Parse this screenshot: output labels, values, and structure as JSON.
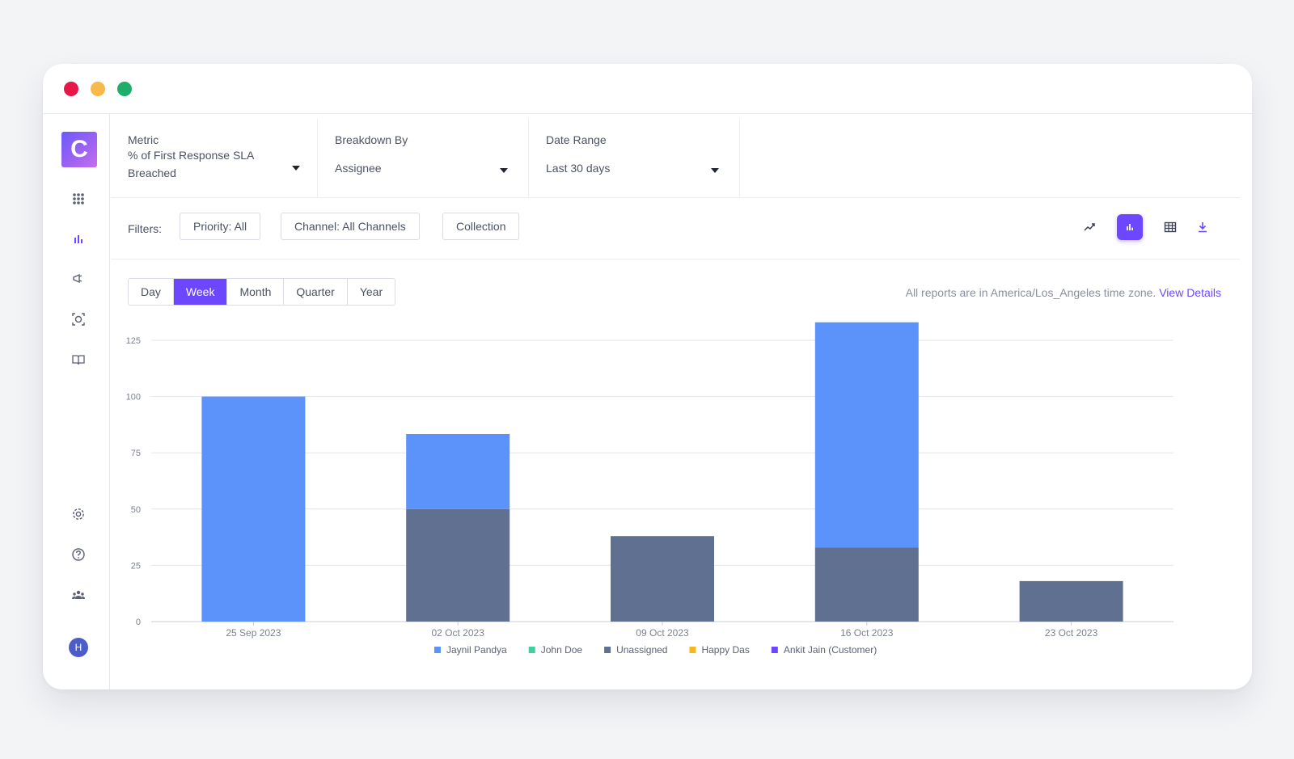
{
  "topbar": {
    "metric": {
      "label": "Metric",
      "value_line1": "% of First Response SLA",
      "value_line2": "Breached"
    },
    "breakdown": {
      "label": "Breakdown By",
      "value": "Assignee"
    },
    "date_range": {
      "label": "Date Range",
      "value": "Last 30 days"
    }
  },
  "filters": {
    "label": "Filters:",
    "chips": [
      "Priority: All",
      "Channel: All Channels",
      "Collection"
    ]
  },
  "toolbar": {
    "icons": [
      "trend-line-icon",
      "bar-chart-icon",
      "table-icon",
      "download-icon"
    ],
    "active": "bar-chart-icon",
    "accent": "#6c47ff"
  },
  "granularity": {
    "options": [
      "Day",
      "Week",
      "Month",
      "Quarter",
      "Year"
    ],
    "selected": "Week"
  },
  "timezone": {
    "text": "All reports are in America/Los_Angeles time zone.",
    "link": "View Details"
  },
  "sidebar": {
    "logo": "C",
    "icons": [
      "apps-grid-icon",
      "reports-icon",
      "campaigns-icon",
      "automation-icon",
      "knowledge-base-icon",
      "settings-icon",
      "help-icon",
      "team-icon"
    ],
    "avatar": "H"
  },
  "chart_data": {
    "type": "bar",
    "stacked": true,
    "categories": [
      "25 Sep 2023",
      "02 Oct 2023",
      "09 Oct 2023",
      "16 Oct 2023",
      "23 Oct 2023"
    ],
    "series": [
      {
        "name": "Jaynil Pandya",
        "color": "#5b93fa",
        "values": [
          100,
          33.33,
          0,
          100,
          0
        ]
      },
      {
        "name": "John Doe",
        "color": "#3fcf9a",
        "values": [
          0,
          0,
          0,
          0,
          0
        ]
      },
      {
        "name": "Unassigned",
        "color": "#5f7090",
        "values": [
          0,
          50,
          38,
          33,
          18
        ]
      },
      {
        "name": "Happy Das",
        "color": "#f8b81d",
        "values": [
          0,
          0,
          0,
          0,
          0
        ]
      },
      {
        "name": "Ankit Jain (Customer)",
        "color": "#6c47ff",
        "values": [
          0,
          0,
          0,
          0,
          0
        ]
      }
    ],
    "yticks": [
      0,
      25,
      50,
      75,
      100,
      125
    ],
    "ylim": [
      0,
      125
    ],
    "grid": true,
    "legend": "bottom"
  }
}
